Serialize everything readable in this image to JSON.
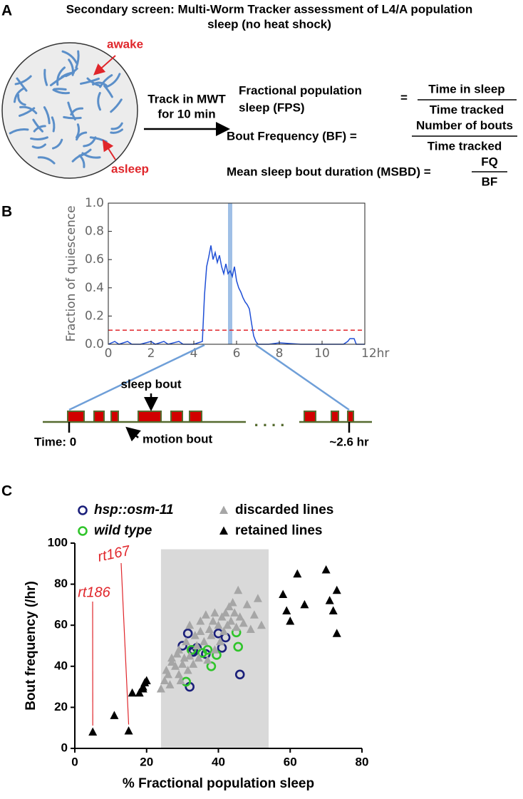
{
  "panel_labels": [
    "A",
    "B",
    "C"
  ],
  "diagram_a": {
    "title": [
      "Secondary screen: Multi-Worm Tracker assessment of L4/A population",
      "sleep (no heat shock)"
    ],
    "awake": "awake",
    "asleep": "asleep",
    "track": [
      "Track in MWT",
      "for 10 min"
    ],
    "formulas": [
      {
        "left": [
          "Fractional  population",
          "sleep (FPS)"
        ],
        "equals": "=",
        "numerator": "Time in sleep",
        "denominator": "Time tracked"
      },
      {
        "left": [
          "Bout Frequency (BF) ="
        ],
        "numerator": "Number of bouts",
        "denominator": "Time tracked"
      },
      {
        "left": [
          "Mean sleep bout duration (MSBD) ="
        ],
        "numerator": "FQ",
        "denominator": "BF"
      }
    ]
  },
  "diagram_b": {
    "sleep_bout": "sleep bout",
    "motion_bout": "motion bout",
    "start": "Time: 0",
    "end": "~2.6 hr",
    "ellipsis": ". . . ."
  },
  "chart_data": [
    {
      "type": "line",
      "ylabel": "Fraction of quiescence",
      "color": "#1f4fd6",
      "x": [
        0,
        0.3,
        0.5,
        0.9,
        1.1,
        1.5,
        2.0,
        2.2,
        2.6,
        2.8,
        3.3,
        3.5,
        4.0,
        4.4,
        4.5,
        4.6,
        4.7,
        4.8,
        4.9,
        5.0,
        5.1,
        5.2,
        5.3,
        5.4,
        5.5,
        5.6,
        5.7,
        5.8,
        5.9,
        6.0,
        6.1,
        6.2,
        6.3,
        6.4,
        6.5,
        6.6,
        6.7,
        6.8,
        6.9,
        7.0,
        7.5,
        8,
        9,
        10,
        11,
        11.2,
        11.3,
        11.5,
        11.6,
        12
      ],
      "values": [
        0,
        0.02,
        0,
        0.02,
        0,
        0,
        0.02,
        0,
        0.02,
        0,
        0.02,
        0,
        0,
        0.02,
        0.35,
        0.55,
        0.62,
        0.7,
        0.6,
        0.65,
        0.58,
        0.63,
        0.55,
        0.5,
        0.57,
        0.5,
        0.52,
        0.48,
        0.55,
        0.45,
        0.4,
        0.37,
        0.33,
        0.3,
        0.28,
        0.25,
        0.15,
        0.06,
        0.02,
        0,
        0,
        0.01,
        0,
        0,
        0,
        0.02,
        0.04,
        0.04,
        0,
        0
      ],
      "xlim": [
        0,
        12
      ],
      "ylim": [
        0,
        1
      ],
      "xticks": [
        0,
        2,
        4,
        6,
        8,
        10,
        {
          "value": 12,
          "label": "12hr"
        }
      ],
      "yticks": [
        {
          "value": 0,
          "label": "0.0"
        },
        0.2,
        0.4,
        0.6,
        0.8,
        {
          "value": 1,
          "label": "1.0"
        }
      ],
      "threshold": 0.1,
      "threshold_color": "#e0262b",
      "highlight_x": 5.7,
      "highlight_color": "#9fbfe6"
    },
    {
      "type": "scatter",
      "xlabel": "% Fractional population sleep",
      "ylabel": "Bout frequency (/hr)",
      "xlim": [
        0,
        80
      ],
      "ylim": [
        0,
        100
      ],
      "xticks": [
        0,
        20,
        40,
        60,
        80
      ],
      "yticks": [
        0,
        20,
        40,
        60,
        80,
        100
      ],
      "shaded_region": {
        "xlim": [
          24,
          54
        ],
        "ylim": [
          0,
          97
        ],
        "color": "#d9d9d9"
      },
      "legend": "top",
      "series": [
        {
          "name": "hsp::osm-11",
          "color": "#1a1f7a",
          "marker": "circle",
          "x": [
            30,
            31.5,
            32,
            33,
            33,
            36.5,
            40,
            41,
            42,
            46,
            34
          ],
          "values": [
            50,
            56,
            30,
            48,
            47,
            46,
            56,
            49,
            54,
            36,
            49
          ]
        },
        {
          "name": "wild type",
          "color": "#2fc42a",
          "marker": "circle",
          "x": [
            31,
            32.5,
            35.5,
            38,
            39.5,
            45,
            45.5,
            37
          ],
          "values": [
            32.5,
            48,
            46.5,
            40,
            45.5,
            56.5,
            49.5,
            48
          ]
        },
        {
          "name": "discarded lines",
          "color": "#a6a6a6",
          "marker": "triangle",
          "x": [
            24,
            25,
            25.5,
            26,
            27,
            27,
            28,
            28.5,
            29,
            29,
            30,
            30.5,
            31,
            31.5,
            32,
            32,
            33,
            33.5,
            34,
            34.5,
            35,
            35,
            36,
            36.5,
            37,
            37.5,
            38,
            38.5,
            39,
            39,
            40,
            40.5,
            41,
            41.5,
            42,
            42.5,
            43,
            43.5,
            44,
            44.5,
            45,
            45.5,
            46,
            47,
            48,
            49,
            50,
            51,
            52,
            29.5,
            26.5
          ],
          "values": [
            29,
            33,
            38,
            36,
            42,
            44,
            40,
            46,
            36,
            48,
            41,
            44,
            52,
            38,
            45,
            60,
            41,
            55,
            50,
            44,
            57,
            62,
            52,
            65,
            43,
            58,
            55,
            62,
            48,
            66,
            60,
            52,
            64,
            57,
            66,
            60,
            69,
            62,
            71,
            66,
            59,
            77,
            64,
            61,
            70,
            58,
            65,
            73,
            60,
            33,
            31
          ]
        },
        {
          "name": "retained lines",
          "color": "#000000",
          "marker": "triangle",
          "x": [
            5,
            11,
            15,
            16,
            18,
            19,
            19.5,
            20,
            19,
            58,
            59,
            60,
            62,
            64,
            70,
            71,
            72,
            73,
            73
          ],
          "values": [
            8,
            16,
            8.5,
            27,
            27,
            29,
            32,
            33,
            30,
            75,
            67,
            62,
            85,
            70,
            87,
            72,
            67,
            77,
            56
          ]
        }
      ],
      "annotations": [
        {
          "text": "rt186",
          "x": 5,
          "y": 8,
          "color": "#e0262b"
        },
        {
          "text": "rt167",
          "x": 15,
          "y": 8.5,
          "color": "#e0262b"
        }
      ]
    }
  ]
}
